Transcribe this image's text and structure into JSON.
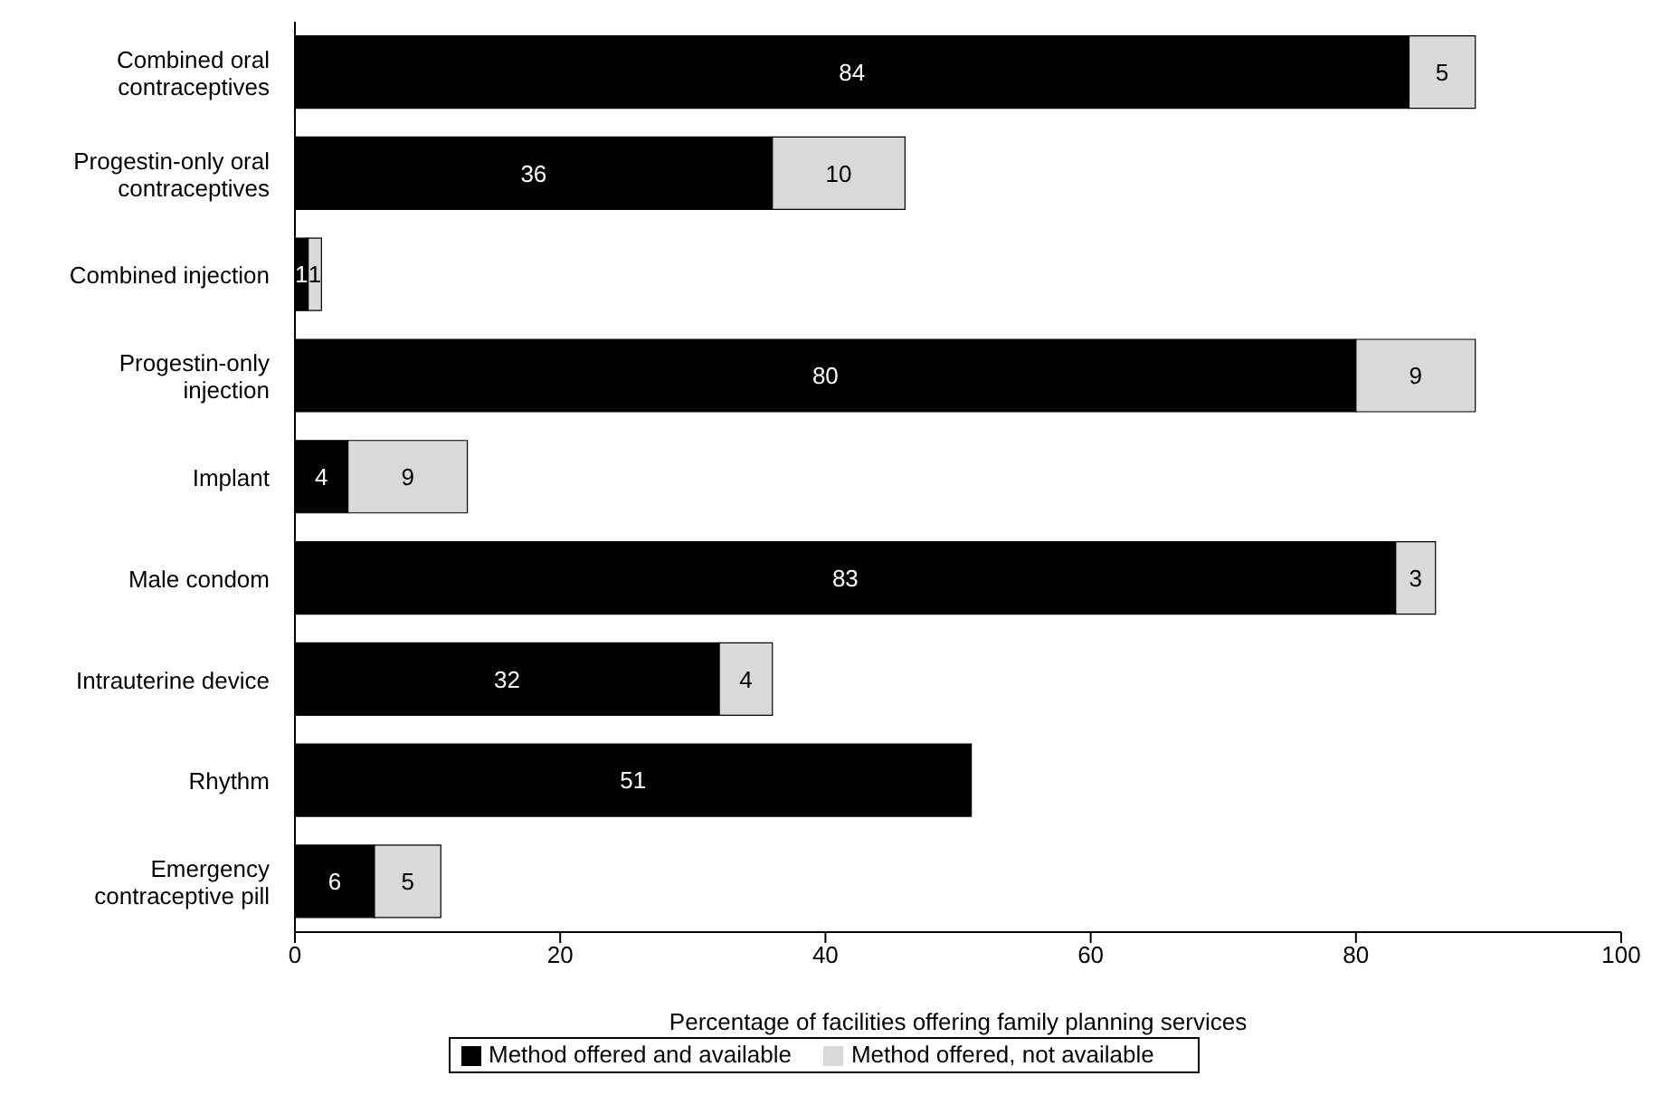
{
  "chart_data": {
    "type": "bar",
    "orientation": "horizontal",
    "stacked": true,
    "categories": [
      "Combined oral contraceptives",
      "Progestin-only oral contraceptives",
      "Combined injection",
      "Progestin-only injection",
      "Implant",
      "Male condom",
      "Intrauterine device",
      "Rhythm",
      "Emergency contraceptive pill"
    ],
    "series": [
      {
        "name": "Method offered and available",
        "color": "#000000",
        "values": [
          84,
          36,
          1,
          80,
          4,
          83,
          32,
          51,
          6
        ]
      },
      {
        "name": "Method offered, not available",
        "color": "#d9d9d9",
        "values": [
          5,
          10,
          1,
          9,
          9,
          3,
          4,
          null,
          5
        ]
      }
    ],
    "xlabel": "Percentage of facilities offering family planning services",
    "xlim": [
      0,
      100
    ],
    "xticks": [
      0,
      20,
      40,
      60,
      80,
      100
    ],
    "data_labels": true,
    "legend": "bottom",
    "grid": false
  }
}
